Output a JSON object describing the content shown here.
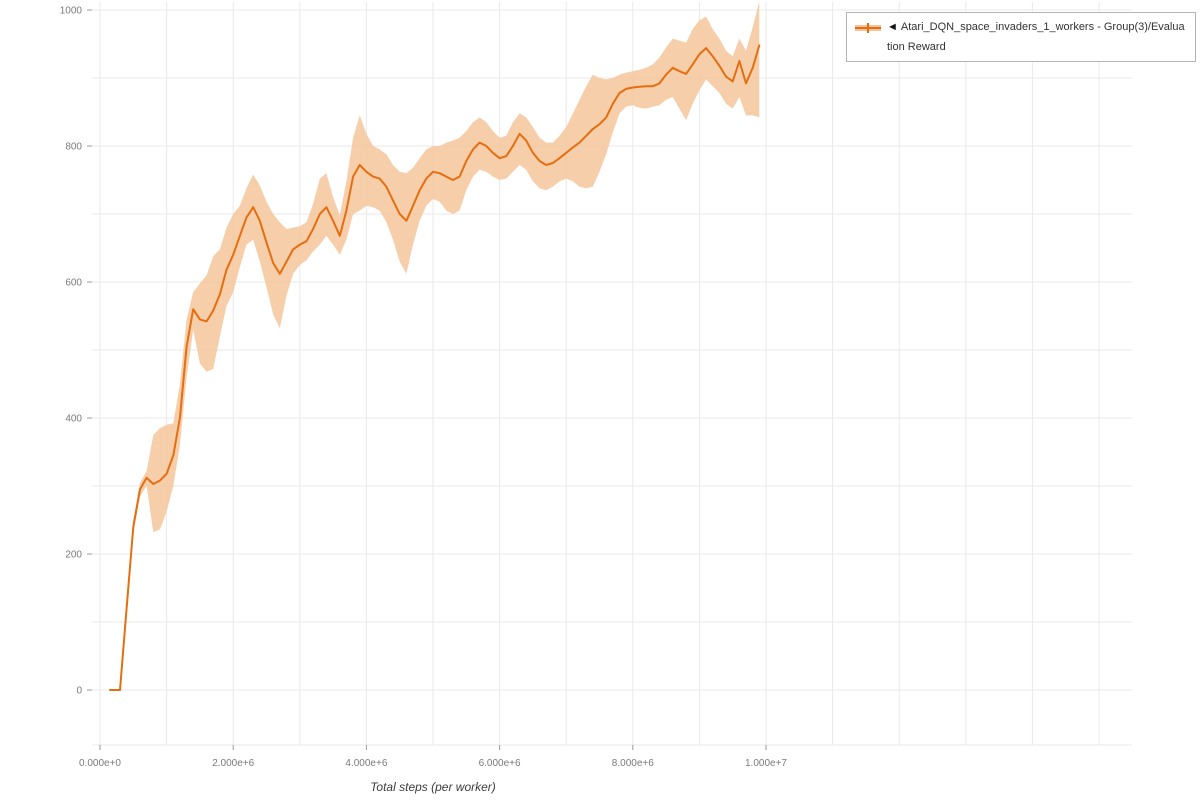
{
  "legend": {
    "collapse_icon": "◄",
    "label": "Atari_DQN_space_invaders_1_workers - Group(3)/Evaluation Reward"
  },
  "colors": {
    "grid": "#e9e9e9",
    "tick": "#9a9a9a",
    "tick_label": "#7a7a7a",
    "legend_border": "#b5b5b5",
    "legend_text": "#333333"
  },
  "chart_data": {
    "type": "line",
    "title": "",
    "xlabel": "Total steps (per worker)",
    "ylabel": "",
    "xlim": [
      0,
      10000000
    ],
    "ylim": [
      0,
      1000
    ],
    "grid": true,
    "legend_position": "top-right",
    "x_tick_values": [
      0,
      2000000,
      4000000,
      6000000,
      8000000,
      10000000
    ],
    "x_tick_labels": [
      "0.000e+0",
      "2.000e+6",
      "4.000e+6",
      "6.000e+6",
      "8.000e+6",
      "1.000e+7"
    ],
    "y_tick_values": [
      0,
      200,
      400,
      600,
      800,
      1000
    ],
    "y_tick_labels": [
      "0",
      "200",
      "400",
      "600",
      "800",
      "1000"
    ],
    "series": [
      {
        "name": "Atari_DQN_space_invaders_1_workers - Group(3)/Evaluation Reward",
        "line_color": "#e56f10",
        "band_color": "#f4c59b",
        "x_scale": 1000000,
        "x": [
          0.15,
          0.3,
          0.4,
          0.5,
          0.6,
          0.7,
          0.8,
          0.9,
          1.0,
          1.1,
          1.2,
          1.3,
          1.4,
          1.5,
          1.6,
          1.7,
          1.8,
          1.9,
          2.0,
          2.1,
          2.2,
          2.3,
          2.4,
          2.5,
          2.6,
          2.7,
          2.8,
          2.9,
          3.0,
          3.1,
          3.2,
          3.3,
          3.4,
          3.5,
          3.6,
          3.7,
          3.8,
          3.9,
          4.0,
          4.1,
          4.2,
          4.3,
          4.4,
          4.5,
          4.6,
          4.7,
          4.8,
          4.9,
          5.0,
          5.1,
          5.2,
          5.3,
          5.4,
          5.5,
          5.6,
          5.7,
          5.8,
          5.9,
          6.0,
          6.1,
          6.2,
          6.3,
          6.4,
          6.5,
          6.6,
          6.7,
          6.8,
          6.9,
          7.0,
          7.1,
          7.2,
          7.3,
          7.4,
          7.5,
          7.6,
          7.7,
          7.8,
          7.9,
          8.0,
          8.1,
          8.2,
          8.3,
          8.4,
          8.5,
          8.6,
          8.7,
          8.8,
          8.9,
          9.0,
          9.1,
          9.2,
          9.3,
          9.4,
          9.5,
          9.6,
          9.7,
          9.8,
          9.9
        ],
        "mean": [
          0,
          0,
          120,
          240,
          295,
          312,
          303,
          308,
          318,
          345,
          400,
          505,
          560,
          545,
          542,
          558,
          582,
          618,
          640,
          668,
          695,
          710,
          690,
          658,
          628,
          612,
          630,
          648,
          655,
          660,
          678,
          700,
          710,
          690,
          668,
          705,
          755,
          772,
          762,
          755,
          752,
          740,
          720,
          700,
          690,
          712,
          735,
          752,
          762,
          760,
          755,
          750,
          755,
          778,
          795,
          805,
          800,
          790,
          782,
          785,
          800,
          818,
          808,
          790,
          778,
          772,
          775,
          782,
          790,
          798,
          805,
          815,
          825,
          832,
          842,
          862,
          878,
          884,
          886,
          887,
          888,
          888,
          892,
          905,
          915,
          910,
          906,
          920,
          935,
          944,
          932,
          918,
          902,
          895,
          925,
          892,
          915,
          948
        ],
        "band_low": [
          0,
          0,
          115,
          230,
          285,
          300,
          232,
          236,
          262,
          300,
          360,
          460,
          530,
          480,
          468,
          472,
          520,
          565,
          585,
          622,
          655,
          662,
          630,
          592,
          552,
          532,
          580,
          612,
          625,
          632,
          645,
          655,
          668,
          655,
          640,
          662,
          700,
          705,
          712,
          710,
          705,
          688,
          662,
          630,
          612,
          655,
          690,
          712,
          722,
          718,
          705,
          700,
          705,
          735,
          755,
          765,
          762,
          755,
          750,
          752,
          762,
          772,
          765,
          748,
          738,
          735,
          740,
          748,
          752,
          748,
          740,
          738,
          740,
          762,
          788,
          820,
          848,
          858,
          860,
          856,
          855,
          858,
          860,
          868,
          872,
          855,
          838,
          862,
          882,
          898,
          888,
          878,
          862,
          855,
          872,
          845,
          845,
          842
        ],
        "band_high": [
          0,
          0,
          125,
          250,
          305,
          322,
          375,
          385,
          390,
          392,
          450,
          545,
          585,
          598,
          610,
          638,
          648,
          680,
          700,
          712,
          738,
          758,
          742,
          718,
          700,
          688,
          678,
          680,
          682,
          688,
          715,
          752,
          760,
          725,
          698,
          748,
          812,
          845,
          818,
          800,
          795,
          788,
          772,
          762,
          760,
          768,
          782,
          795,
          800,
          800,
          805,
          808,
          812,
          822,
          835,
          842,
          835,
          822,
          812,
          815,
          835,
          848,
          842,
          828,
          812,
          805,
          805,
          815,
          828,
          848,
          868,
          888,
          905,
          900,
          898,
          900,
          905,
          908,
          910,
          912,
          915,
          920,
          930,
          945,
          958,
          955,
          952,
          972,
          985,
          990,
          972,
          958,
          940,
          932,
          958,
          940,
          975,
          1012
        ]
      }
    ]
  }
}
